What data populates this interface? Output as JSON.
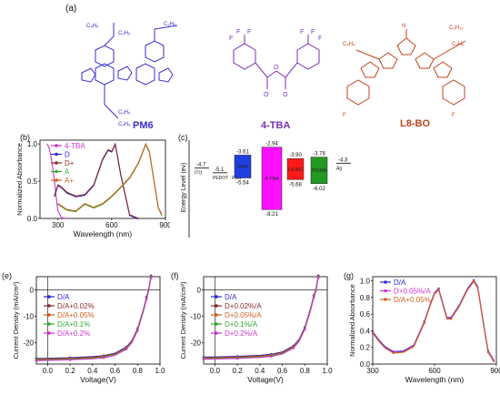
{
  "panels": {
    "a": "(a)",
    "b": "(b)",
    "c": "(c)",
    "e": "(e)",
    "f": "(f)",
    "g": "(g)"
  },
  "molecules": {
    "pm6": {
      "name": "PM6",
      "color": "#3a2fd0"
    },
    "tba": {
      "name": "4-TBA",
      "color": "#7a2fb5"
    },
    "l8bo": {
      "name": "L8-BO",
      "color": "#c2451e"
    }
  },
  "chart_data": [
    {
      "id": "b",
      "type": "line",
      "xlabel": "Wavelength (nm)",
      "ylabel": "Normalized Absorbance",
      "xlim": [
        200,
        900
      ],
      "ylim": [
        0,
        1.05
      ],
      "xticks": [
        "300",
        "600",
        "900"
      ],
      "yticks": [
        "0.0",
        "0.5",
        "1.0"
      ],
      "legend_position": "top-left",
      "series": [
        {
          "name": "4-TBA",
          "color": "#cc33cc",
          "x": [
            240,
            250,
            260,
            270,
            280,
            290,
            300,
            320,
            350
          ],
          "y": [
            1.0,
            0.95,
            0.85,
            0.7,
            0.5,
            0.3,
            0.1,
            0.01,
            0.0
          ]
        },
        {
          "name": "D",
          "color": "#2a2ad0",
          "x": [
            280,
            300,
            320,
            350,
            400,
            450,
            500,
            550,
            580,
            600,
            620,
            650,
            700,
            750
          ],
          "y": [
            0.3,
            0.45,
            0.42,
            0.35,
            0.3,
            0.32,
            0.45,
            0.8,
            0.92,
            0.9,
            1.0,
            0.6,
            0.05,
            0.0
          ]
        },
        {
          "name": "D+",
          "color": "#8a2a2a",
          "x": [
            280,
            300,
            320,
            350,
            400,
            450,
            500,
            550,
            580,
            600,
            620,
            650,
            700,
            750
          ],
          "y": [
            0.3,
            0.45,
            0.42,
            0.35,
            0.3,
            0.32,
            0.45,
            0.8,
            0.92,
            0.9,
            1.0,
            0.6,
            0.05,
            0.0
          ]
        },
        {
          "name": "A",
          "color": "#33aa33",
          "x": [
            300,
            350,
            400,
            450,
            500,
            550,
            600,
            650,
            700,
            750,
            790,
            810,
            830,
            860,
            880
          ],
          "y": [
            0.2,
            0.12,
            0.1,
            0.2,
            0.15,
            0.2,
            0.3,
            0.42,
            0.55,
            0.75,
            1.0,
            0.9,
            0.6,
            0.15,
            0.05
          ]
        },
        {
          "name": "A+",
          "color": "#d06020",
          "x": [
            300,
            350,
            400,
            450,
            500,
            550,
            600,
            650,
            700,
            750,
            790,
            810,
            830,
            860,
            880
          ],
          "y": [
            0.2,
            0.12,
            0.1,
            0.2,
            0.15,
            0.2,
            0.3,
            0.42,
            0.55,
            0.75,
            1.0,
            0.9,
            0.6,
            0.15,
            0.05
          ]
        }
      ]
    },
    {
      "id": "c",
      "type": "bar",
      "ylabel": "Energy Level (ev)",
      "levels": [
        {
          "name": "ITO",
          "value": -4.7,
          "label": "-4.7",
          "color": "#333333"
        },
        {
          "name": "PEDOT : PSS",
          "value": -5.1,
          "label": "-5.1",
          "color": "#333333"
        },
        {
          "name": "PM6",
          "top": -3.61,
          "bottom": -5.54,
          "top_label": "-3.61",
          "bottom_label": "-5.54",
          "color": "#1f3fe0"
        },
        {
          "name": "4-TBA",
          "top": -2.94,
          "bottom": -8.21,
          "top_label": "-2.94",
          "bottom_label": "-8.21",
          "color": "#ff10ff"
        },
        {
          "name": "L8-BO",
          "top": -3.9,
          "bottom": -5.68,
          "top_label": "-3.90",
          "bottom_label": "-5.68",
          "color": "#ff1a1a"
        },
        {
          "name": "PDINN",
          "top": -3.78,
          "bottom": -6.02,
          "top_label": "-3.78",
          "bottom_label": "-6.02",
          "color": "#229922"
        },
        {
          "name": "Ag",
          "value": -4.3,
          "label": "-4.3",
          "color": "#333333"
        }
      ]
    },
    {
      "id": "e",
      "type": "line",
      "xlabel": "Voltage(V)",
      "ylabel": "Current Density (mA/cm²)",
      "xlim": [
        -0.1,
        1.0
      ],
      "ylim": [
        -28,
        5
      ],
      "xticks": [
        "0.0",
        "0.2",
        "0.4",
        "0.6",
        "0.8",
        "1.0"
      ],
      "yticks": [
        "0",
        "-10",
        "-20"
      ],
      "legend_position": "center-left",
      "series": [
        {
          "name": "D/A",
          "color": "#2a2ad0"
        },
        {
          "name": "D/A+0.02%",
          "color": "#8a2a2a"
        },
        {
          "name": "D/A+0.05%",
          "color": "#d06020"
        },
        {
          "name": "D/A+0.1%",
          "color": "#33aa33"
        },
        {
          "name": "D/A+0.2%",
          "color": "#cc33cc"
        }
      ],
      "curve": {
        "jsc": -26.2,
        "voc": 0.9,
        "x": [
          -0.1,
          0.0,
          0.2,
          0.4,
          0.5,
          0.6,
          0.7,
          0.75,
          0.8,
          0.85,
          0.88,
          0.9,
          0.92
        ],
        "y": [
          -26.3,
          -26.2,
          -26.0,
          -25.6,
          -25.2,
          -24.3,
          -22.0,
          -19.5,
          -15.0,
          -8.0,
          -3.0,
          0.0,
          5.0
        ]
      }
    },
    {
      "id": "f",
      "type": "line",
      "xlabel": "Voltage(V)",
      "ylabel": "Current Density (mA/cm²)",
      "xlim": [
        -0.1,
        1.0
      ],
      "ylim": [
        -28,
        5
      ],
      "xticks": [
        "0.0",
        "0.2",
        "0.4",
        "0.6",
        "0.8",
        "1.0"
      ],
      "yticks": [
        "0",
        "-10",
        "-20"
      ],
      "legend_position": "center-left",
      "series": [
        {
          "name": "D/A",
          "color": "#2a2ad0"
        },
        {
          "name": "D+0.02%/A",
          "color": "#8a2a2a"
        },
        {
          "name": "D+0.05%/A",
          "color": "#d06020"
        },
        {
          "name": "D+0.1%/A",
          "color": "#33aa33"
        },
        {
          "name": "D+0.2%/A",
          "color": "#cc33cc"
        }
      ],
      "curve": {
        "jsc": -25.7,
        "voc": 0.9,
        "x": [
          -0.1,
          0.0,
          0.2,
          0.4,
          0.5,
          0.6,
          0.7,
          0.75,
          0.8,
          0.85,
          0.88,
          0.9,
          0.92
        ],
        "y": [
          -25.8,
          -25.7,
          -25.5,
          -25.1,
          -24.7,
          -23.8,
          -21.5,
          -19.0,
          -14.5,
          -7.5,
          -2.5,
          0.0,
          5.0
        ]
      }
    },
    {
      "id": "g",
      "type": "line",
      "xlabel": "Wavelength (nm)",
      "ylabel": "Normalized Absorbance",
      "xlim": [
        300,
        900
      ],
      "ylim": [
        0,
        1.05
      ],
      "xticks": [
        "300",
        "600",
        "900"
      ],
      "yticks": [
        "0.0",
        "0.2",
        "0.4",
        "0.6",
        "0.8",
        "1.0"
      ],
      "legend_position": "top-left",
      "series": [
        {
          "name": "D/A",
          "color": "#2a2ad0"
        },
        {
          "name": "D+0.05%/A",
          "color": "#cc33cc"
        },
        {
          "name": "D/A+0.05%",
          "color": "#d06020"
        }
      ],
      "curve": {
        "x": [
          300,
          330,
          360,
          400,
          450,
          500,
          550,
          580,
          600,
          620,
          640,
          660,
          680,
          720,
          760,
          790,
          810,
          830,
          860,
          890
        ],
        "y": [
          0.38,
          0.28,
          0.2,
          0.14,
          0.15,
          0.22,
          0.5,
          0.72,
          0.85,
          0.9,
          0.72,
          0.55,
          0.55,
          0.7,
          0.9,
          1.0,
          0.92,
          0.6,
          0.15,
          0.03
        ]
      }
    }
  ]
}
